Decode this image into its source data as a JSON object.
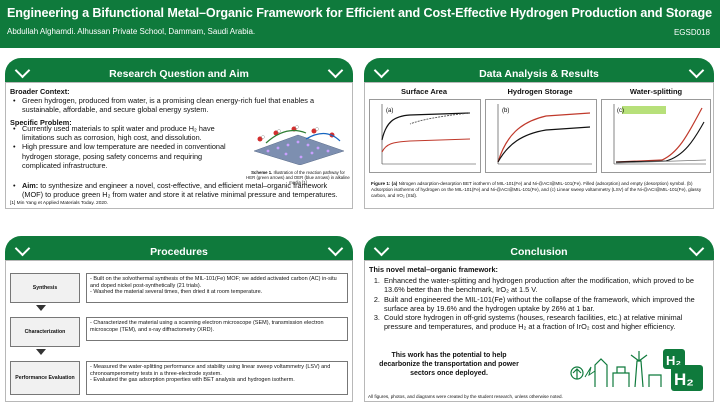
{
  "header": {
    "title": "Engineering a Bifunctional Metal–Organic Framework for Efficient and Cost-Effective Hydrogen Production and Storage",
    "authors": "Abdullah Alghamdi. Alhussan Private School, Dammam, Saudi Arabia.",
    "code": "EGSD018"
  },
  "research": {
    "title": "Research Question and Aim",
    "broader_label": "Broader Context:",
    "broader_items": [
      "Green hydrogen, produced from water, is a promising clean energy-rich fuel that enables a sustainable, affordable, and secure global energy system."
    ],
    "specific_label": "Specific Problem:",
    "specific_items": [
      "Currently used materials to split water and produce H₂ have limitations such as corrosion, high cost, and dissolution.",
      "High pressure and low temperature are needed in conventional hydrogen storage, posing safety concerns and requiring complicated infrastructure."
    ],
    "aim_label": "Aim:",
    "aim_text": " to synthesize and engineer a novel, cost-effective, and efficient metal–organic framework (MOF) to produce green H₂ from water and store it at relative minimal pressure and temperatures.",
    "scheme_caption_bold": "Scheme 1.",
    "scheme_caption": " Illustration of the reaction pathway for HER (green arrows) and OER (blue arrows) in alkaline media [1]",
    "reference": "[1] Min Yang et Applied Materials Today. 2020."
  },
  "data": {
    "title": "Data Analysis & Results",
    "charts": [
      {
        "title": "Surface Area",
        "tag": "(a)"
      },
      {
        "title": "Hydrogen Storage",
        "tag": "(b)"
      },
      {
        "title": "Water-splitting",
        "tag": "(c)"
      }
    ],
    "caption_bold": "Figure 1: (a)",
    "caption": " Nitrogen adsorption-desorption BET isotherm of MIL-101(Fe) and Ni-@ACI@MIL-101(Fe). Filled (adsorption) and empty (desorption) symbol. (b) Adsorption isotherms of hydrogen on the MIL-101(Fe) and Ni-@ACI@MIL-101(Fe), and (c) Linear sweep voltammetry (LSV) of the Ni-@ACI@MIL-101(Fe), glassy carbon, and IrO₂ (Std)."
  },
  "procedures": {
    "title": "Procedures",
    "rows": [
      {
        "label": "Synthesis",
        "lines": [
          "- Built on the solvothermal synthesis of the MIL-101(Fe) MOF; we added activated carbon (AC) in-situ and doped nickel post-synthetically (21 trials).",
          "- Washed the material several times, then dried it at room temperature."
        ]
      },
      {
        "label": "Characterization",
        "lines": [
          "- Characterized the material using a scanning electron microscope (SEM), transmission electron microscope (TEM), and x-ray diffractometry (XRD)."
        ]
      },
      {
        "label": "Performance Evaluation",
        "lines": [
          "- Measured the water-splitting performance and stability using linear sweep voltammetry (LSV) and chronoamperometry tests in a three-electrode system.",
          "- Evaluated the gas adsorption properties with BET analysis and hydrogen isotherm."
        ]
      }
    ]
  },
  "conclusion": {
    "title": "Conclusion",
    "intro": "This novel metal–organic framework:",
    "items": [
      "Enhanced the water-splitting and hydrogen production after the modification, which proved to be 13.6% better than the benchmark, IrO₂ at 1.5 V.",
      "Built and engineered the MIL-101(Fe) without the collapse of the framework, which improved the surface area by 19.6% and the hydrogen uptake by 26% at 1 bar.",
      "Could store hydrogen in off-grid systems (houses, research facilities, etc.) at relative minimal pressure and temperatures, and produce H₂ at a fraction of IrO₂ cost and higher efficiency."
    ],
    "potential": "This work has the potential to help decarbonize the transportation and power sectors once deployed.",
    "h2_label": "H₂",
    "footer": "All figures, photos, and diagrams were created by the student research, unless otherwise noted."
  },
  "colors": {
    "brand_green": "#0f7a3c",
    "series_red": "#c0392b",
    "series_black": "#111111"
  }
}
